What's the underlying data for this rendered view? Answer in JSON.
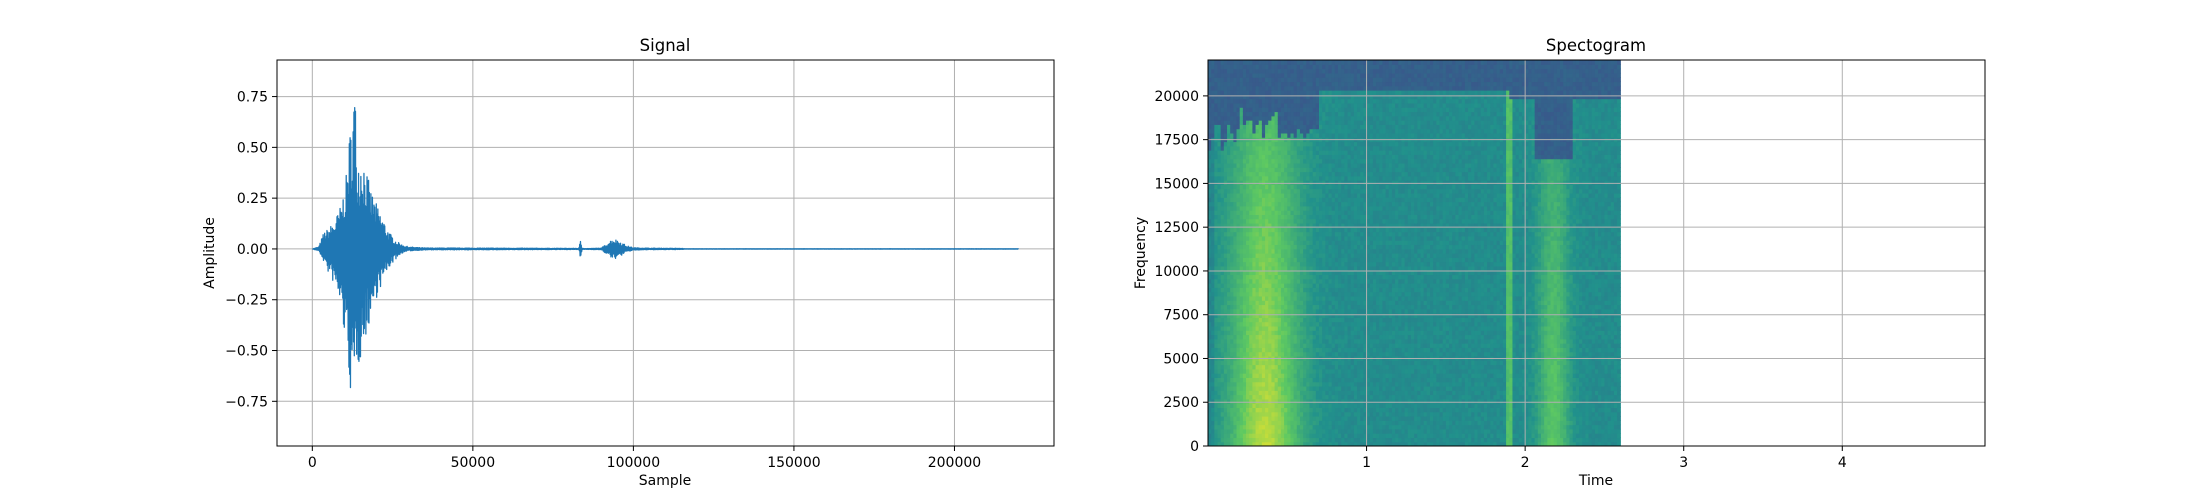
{
  "chart_data": [
    {
      "type": "line",
      "title": "Signal",
      "xlabel": "Sample",
      "ylabel": "Amplitude",
      "xlim": [
        -11000,
        231000
      ],
      "ylim": [
        -0.97,
        0.93
      ],
      "grid": true,
      "series_color": "#1f77b4",
      "xticks": [
        0,
        50000,
        100000,
        150000,
        200000
      ],
      "xtick_labels": [
        "0",
        "50000",
        "100000",
        "150000",
        "200000"
      ],
      "yticks": [
        -0.75,
        -0.5,
        -0.25,
        0.0,
        0.25,
        0.5,
        0.75
      ],
      "ytick_labels": [
        "−0.75",
        "−0.50",
        "−0.25",
        "0.00",
        "0.25",
        "0.50",
        "0.75"
      ],
      "envelope": {
        "x": [
          0,
          2000,
          3500,
          5000,
          7000,
          9000,
          10500,
          11500,
          12500,
          13200,
          13800,
          14500,
          15500,
          16500,
          18000,
          20000,
          22000,
          24000,
          26000,
          28000,
          30000,
          35000,
          60000,
          83000,
          83500,
          84000,
          84500,
          85000,
          90000,
          92000,
          93500,
          95000,
          96500,
          98000,
          100000,
          105000,
          115000,
          116000,
          220000
        ],
        "upper": [
          0.0,
          0.01,
          0.08,
          0.1,
          0.14,
          0.22,
          0.35,
          0.55,
          0.68,
          0.84,
          0.55,
          0.45,
          0.48,
          0.42,
          0.3,
          0.22,
          0.15,
          0.08,
          0.04,
          0.02,
          0.01,
          0.005,
          0.004,
          0.003,
          0.04,
          0.005,
          0.003,
          0.002,
          0.004,
          0.03,
          0.05,
          0.045,
          0.03,
          0.015,
          0.006,
          0.004,
          0.003,
          0.001,
          0.001
        ],
        "lower": [
          0.0,
          -0.01,
          -0.06,
          -0.12,
          -0.18,
          -0.3,
          -0.5,
          -0.62,
          -0.88,
          -0.7,
          -0.55,
          -0.58,
          -0.5,
          -0.45,
          -0.35,
          -0.24,
          -0.16,
          -0.09,
          -0.05,
          -0.02,
          -0.01,
          -0.005,
          -0.004,
          -0.003,
          -0.05,
          -0.004,
          -0.003,
          -0.002,
          -0.004,
          -0.03,
          -0.05,
          -0.045,
          -0.03,
          -0.015,
          -0.006,
          -0.004,
          -0.003,
          -0.001,
          -0.001
        ]
      }
    },
    {
      "type": "heatmap",
      "title": "Spectogram",
      "xlabel": "Time",
      "ylabel": "Frequency",
      "xlim": [
        0,
        4.9
      ],
      "ylim": [
        0,
        22050
      ],
      "data_xlim": [
        0,
        2.6
      ],
      "grid": true,
      "colormap": "viridis",
      "xticks": [
        1,
        2,
        3,
        4
      ],
      "xtick_labels": [
        "1",
        "2",
        "3",
        "4"
      ],
      "yticks": [
        0,
        2500,
        5000,
        7500,
        10000,
        12500,
        15000,
        17500,
        20000
      ],
      "ytick_labels": [
        "0",
        "2500",
        "5000",
        "7500",
        "10000",
        "12500",
        "15000",
        "17500",
        "20000"
      ]
    }
  ]
}
